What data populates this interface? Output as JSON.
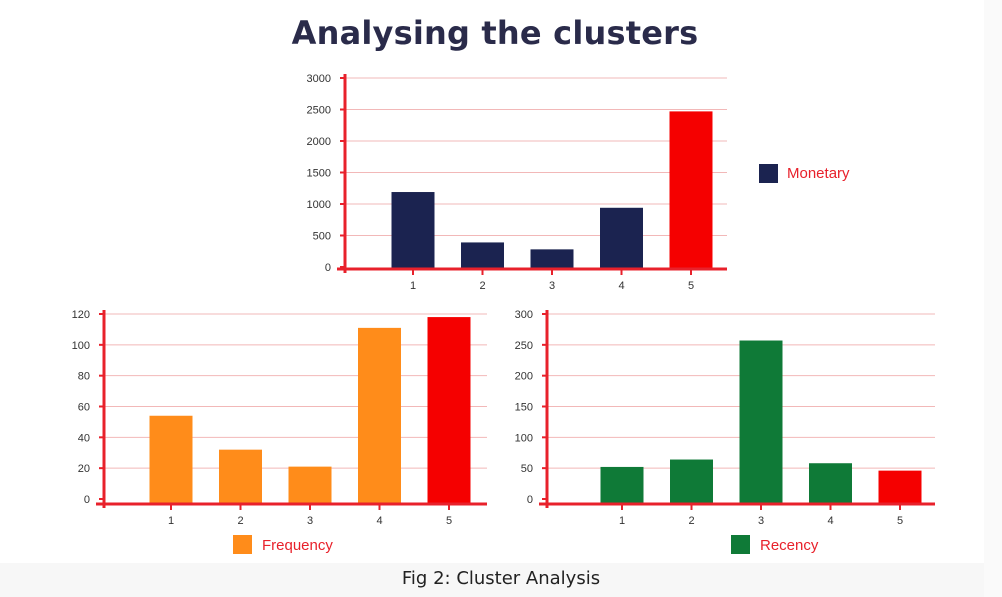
{
  "page": {
    "title": "Analysing the clusters",
    "caption": "Fig 2: Cluster Analysis"
  },
  "chart_data": [
    {
      "id": "monetary",
      "type": "bar",
      "categories": [
        "1",
        "2",
        "3",
        "4",
        "5"
      ],
      "series": [
        {
          "name": "Monetary",
          "values": [
            1190,
            390,
            280,
            940,
            2470
          ]
        }
      ],
      "bar_colors": [
        "#1b2350",
        "#1b2350",
        "#1b2350",
        "#1b2350",
        "#f50000"
      ],
      "legend_swatch": "#1b2350",
      "legend_text_color": "#e8212b",
      "ylim": [
        0,
        3000
      ],
      "yticks": [
        0,
        500,
        1000,
        1500,
        2000,
        2500,
        3000
      ],
      "grid": true,
      "legend_position": "right"
    },
    {
      "id": "frequency",
      "type": "bar",
      "categories": [
        "1",
        "2",
        "3",
        "4",
        "5"
      ],
      "series": [
        {
          "name": "Frequency",
          "values": [
            54,
            32,
            21,
            111,
            118
          ]
        }
      ],
      "bar_colors": [
        "#ff8c1a",
        "#ff8c1a",
        "#ff8c1a",
        "#ff8c1a",
        "#f50000"
      ],
      "legend_swatch": "#ff8c1a",
      "legend_text_color": "#e8212b",
      "ylim": [
        0,
        120
      ],
      "yticks": [
        0,
        20,
        40,
        60,
        80,
        100,
        120
      ],
      "grid": true,
      "legend_position": "bottom"
    },
    {
      "id": "recency",
      "type": "bar",
      "categories": [
        "1",
        "2",
        "3",
        "4",
        "5"
      ],
      "series": [
        {
          "name": "Recency",
          "values": [
            52,
            64,
            257,
            58,
            46
          ]
        }
      ],
      "bar_colors": [
        "#0f7a37",
        "#0f7a37",
        "#0f7a37",
        "#0f7a37",
        "#f50000"
      ],
      "legend_swatch": "#0f7a37",
      "legend_text_color": "#e8212b",
      "ylim": [
        0,
        300
      ],
      "yticks": [
        0,
        50,
        100,
        150,
        200,
        250,
        300
      ],
      "grid": true,
      "legend_position": "bottom"
    }
  ],
  "colors": {
    "axis": "#e8212b",
    "grid": "#f2b8b8",
    "tick_text": "#333333",
    "title": "#2a2b4a"
  }
}
